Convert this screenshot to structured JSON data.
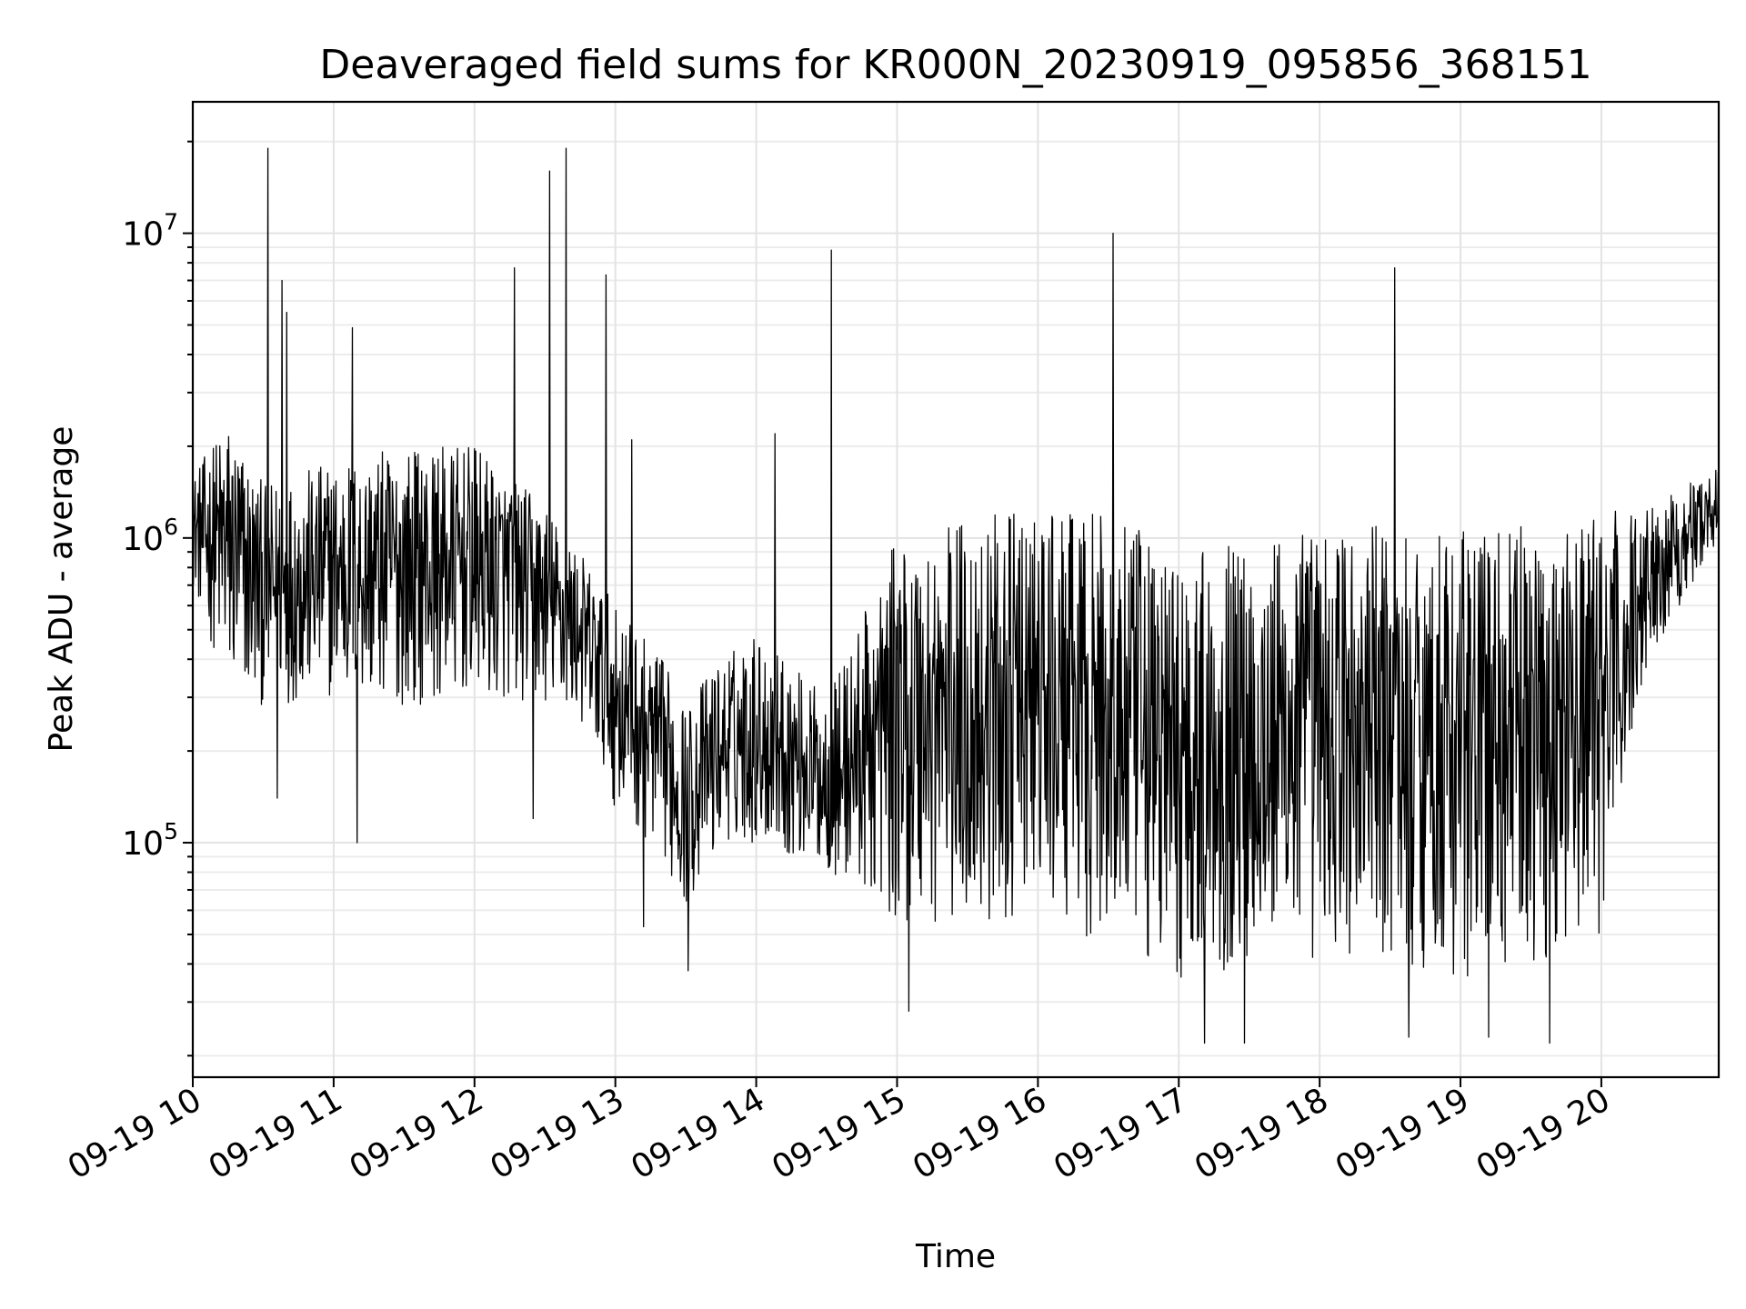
{
  "chart_data": {
    "type": "line",
    "title": "Deaveraged field sums for KR000N_20230919_095856_368151",
    "xlabel": "Time",
    "ylabel": "Peak ADU - average",
    "yscale": "log",
    "xlim": [
      "09-19 10:00",
      "09-19 20:50"
    ],
    "ylim": [
      17000,
      27000000
    ],
    "grid": true,
    "x_ticks": [
      "09-19 10",
      "09-19 11",
      "09-19 12",
      "09-19 13",
      "09-19 14",
      "09-19 15",
      "09-19 16",
      "09-19 17",
      "09-19 18",
      "09-19 19",
      "09-19 20"
    ],
    "y_ticks": [
      {
        "base": "10",
        "exp": "5",
        "value": 100000
      },
      {
        "base": "10",
        "exp": "6",
        "value": 1000000
      },
      {
        "base": "10",
        "exp": "7",
        "value": 10000000
      }
    ],
    "series": [
      {
        "color": "#000000",
        "envelope": [
          {
            "t": "09-19 10:00",
            "lo": 700000,
            "hi": 1600000
          },
          {
            "t": "09-19 10:15",
            "lo": 300000,
            "hi": 2500000
          },
          {
            "t": "09-19 10:30",
            "lo": 280000,
            "hi": 1500000
          },
          {
            "t": "09-19 11:00",
            "lo": 300000,
            "hi": 1800000
          },
          {
            "t": "09-19 11:30",
            "lo": 280000,
            "hi": 2000000
          },
          {
            "t": "09-19 12:00",
            "lo": 300000,
            "hi": 2000000
          },
          {
            "t": "09-19 12:30",
            "lo": 280000,
            "hi": 1300000
          },
          {
            "t": "09-19 12:45",
            "lo": 250000,
            "hi": 900000
          },
          {
            "t": "09-19 13:00",
            "lo": 130000,
            "hi": 600000
          },
          {
            "t": "09-19 13:20",
            "lo": 90000,
            "hi": 400000
          },
          {
            "t": "09-19 13:30",
            "lo": 60000,
            "hi": 300000
          },
          {
            "t": "09-19 13:45",
            "lo": 100000,
            "hi": 400000
          },
          {
            "t": "09-19 14:00",
            "lo": 100000,
            "hi": 500000
          },
          {
            "t": "09-19 14:30",
            "lo": 80000,
            "hi": 300000
          },
          {
            "t": "09-19 15:00",
            "lo": 55000,
            "hi": 1000000
          },
          {
            "t": "09-19 15:30",
            "lo": 50000,
            "hi": 1200000
          },
          {
            "t": "09-19 16:00",
            "lo": 60000,
            "hi": 1200000
          },
          {
            "t": "09-19 16:30",
            "lo": 45000,
            "hi": 1200000
          },
          {
            "t": "09-19 17:00",
            "lo": 35000,
            "hi": 900000
          },
          {
            "t": "09-19 17:30",
            "lo": 40000,
            "hi": 1000000
          },
          {
            "t": "09-19 18:00",
            "lo": 40000,
            "hi": 1100000
          },
          {
            "t": "09-19 18:30",
            "lo": 40000,
            "hi": 1100000
          },
          {
            "t": "09-19 19:00",
            "lo": 35000,
            "hi": 1100000
          },
          {
            "t": "09-19 19:30",
            "lo": 40000,
            "hi": 1100000
          },
          {
            "t": "09-19 20:00",
            "lo": 50000,
            "hi": 1200000
          },
          {
            "t": "09-19 20:20",
            "lo": 400000,
            "hi": 1300000
          },
          {
            "t": "09-19 20:50",
            "lo": 1000000,
            "hi": 1700000
          }
        ],
        "spikes": [
          {
            "t": "09-19 10:32",
            "value": 19000000
          },
          {
            "t": "09-19 10:38",
            "value": 7000000
          },
          {
            "t": "09-19 10:40",
            "value": 5500000
          },
          {
            "t": "09-19 11:08",
            "value": 4900000
          },
          {
            "t": "09-19 12:17",
            "value": 7700000
          },
          {
            "t": "09-19 12:32",
            "value": 16000000
          },
          {
            "t": "09-19 12:39",
            "value": 19000000
          },
          {
            "t": "09-19 12:56",
            "value": 7300000
          },
          {
            "t": "09-19 13:07",
            "value": 2100000
          },
          {
            "t": "09-19 14:08",
            "value": 2200000
          },
          {
            "t": "09-19 14:32",
            "value": 8800000
          },
          {
            "t": "09-19 16:32",
            "value": 10000000
          },
          {
            "t": "09-19 18:32",
            "value": 7700000
          }
        ],
        "dips": [
          {
            "t": "09-19 10:36",
            "value": 140000
          },
          {
            "t": "09-19 11:10",
            "value": 100000
          },
          {
            "t": "09-19 12:25",
            "value": 120000
          },
          {
            "t": "09-19 13:12",
            "value": 53000
          },
          {
            "t": "09-19 13:31",
            "value": 38000
          },
          {
            "t": "09-19 15:05",
            "value": 28000
          },
          {
            "t": "09-19 17:11",
            "value": 22000
          },
          {
            "t": "09-19 17:28",
            "value": 22000
          },
          {
            "t": "09-19 18:38",
            "value": 23000
          },
          {
            "t": "09-19 19:12",
            "value": 23000
          },
          {
            "t": "09-19 19:38",
            "value": 22000
          }
        ]
      }
    ]
  }
}
